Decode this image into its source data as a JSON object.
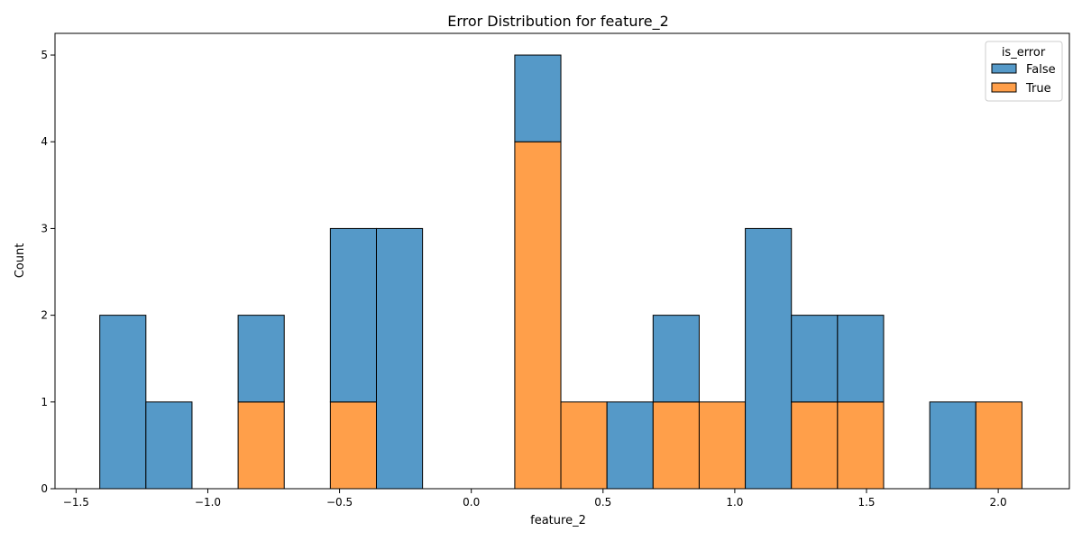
{
  "chart_data": {
    "type": "bar",
    "subtype": "stacked-histogram",
    "title": "Error Distribution for feature_2",
    "xlabel": "feature_2",
    "ylabel": "Count",
    "xlim": [
      -1.58,
      2.27
    ],
    "ylim": [
      0,
      5.25
    ],
    "xticks": [
      -1.5,
      -1.0,
      -0.5,
      0.0,
      0.5,
      1.0,
      1.5,
      2.0
    ],
    "xtick_labels": [
      "−1.5",
      "−1.0",
      "−0.5",
      "0.0",
      "0.5",
      "1.0",
      "1.5",
      "2.0"
    ],
    "yticks": [
      0,
      1,
      2,
      3,
      4,
      5
    ],
    "ytick_labels": [
      "0",
      "1",
      "2",
      "3",
      "4",
      "5"
    ],
    "grid": false,
    "bin_edges": [
      -1.41,
      -1.235,
      -1.06,
      -0.885,
      -0.71,
      -0.535,
      -0.36,
      -0.185,
      -0.01,
      0.165,
      0.34,
      0.515,
      0.69,
      0.865,
      1.04,
      1.215,
      1.39,
      1.565,
      1.74,
      1.915,
      2.09
    ],
    "legend": {
      "title": "is_error",
      "placement": "top-right"
    },
    "series": [
      {
        "name": "True",
        "color": "#ff9f4a",
        "values": [
          0,
          0,
          0,
          1,
          0,
          1,
          0,
          0,
          0,
          4,
          1,
          0,
          1,
          1,
          0,
          1,
          1,
          0,
          0,
          1
        ]
      },
      {
        "name": "False",
        "color": "#5599c8",
        "values": [
          2,
          1,
          0,
          1,
          0,
          2,
          3,
          0,
          0,
          1,
          0,
          1,
          1,
          0,
          3,
          1,
          1,
          0,
          1,
          0
        ]
      }
    ],
    "legend_order": [
      "False",
      "True"
    ]
  }
}
